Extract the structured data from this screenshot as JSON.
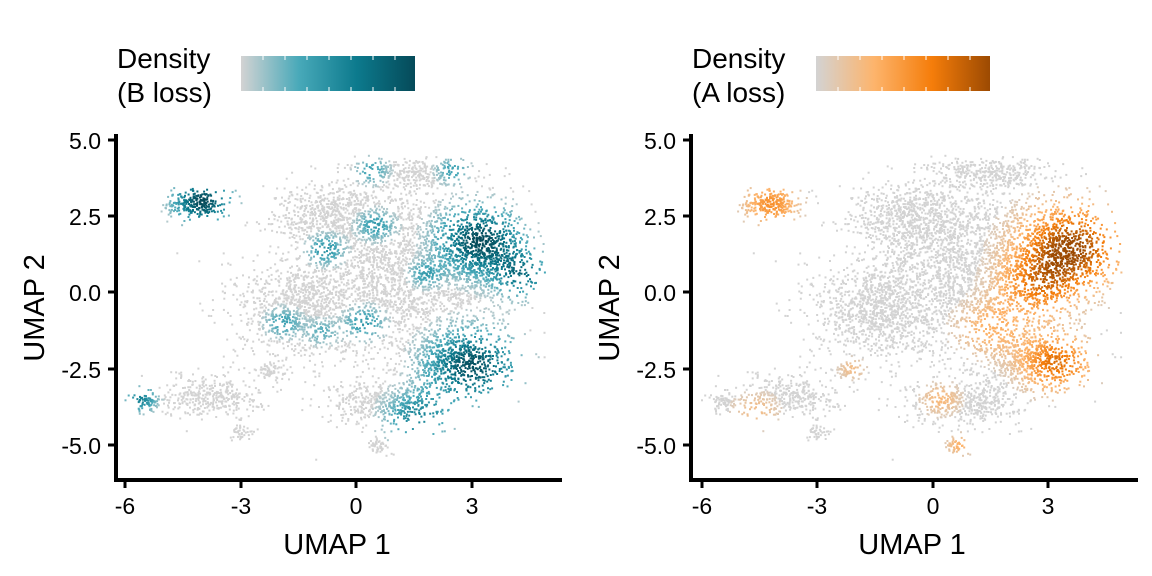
{
  "chart_data": [
    {
      "type": "scatter",
      "xlabel": "UMAP 1",
      "ylabel": "UMAP 2",
      "xticks": [
        -6,
        -3,
        0,
        3
      ],
      "xtick_labels": [
        "-6",
        "-3",
        "0",
        "3"
      ],
      "yticks": [
        5.0,
        2.5,
        0.0,
        -2.5,
        -5.0
      ],
      "ytick_labels": [
        "5.0",
        "2.5",
        "0.0",
        "-2.5",
        "-5.0"
      ],
      "xlim": [
        -6.3,
        5.3
      ],
      "ylim": [
        -6.1,
        5.2
      ],
      "legend": {
        "title_line1": "Density",
        "title_line2": "(B loss)",
        "position": "top",
        "colors": [
          "#d3d3d3",
          "#48a9b9",
          "#0c7a8d",
          "#054a59"
        ]
      },
      "hotspots": [
        {
          "x": -4.0,
          "y": 3.0,
          "intensity": 1.0,
          "radius": 0.7
        },
        {
          "x": 3.2,
          "y": 1.7,
          "intensity": 1.0,
          "radius": 1.0
        },
        {
          "x": 4.3,
          "y": 0.6,
          "intensity": 0.7,
          "radius": 0.7
        },
        {
          "x": 3.0,
          "y": -2.4,
          "intensity": 0.95,
          "radius": 1.1
        },
        {
          "x": 1.6,
          "y": -4.1,
          "intensity": 0.6,
          "radius": 0.8
        },
        {
          "x": -5.6,
          "y": -3.5,
          "intensity": 0.6,
          "radius": 0.4
        },
        {
          "x": -0.8,
          "y": 1.4,
          "intensity": 0.5,
          "radius": 0.45
        },
        {
          "x": 0.5,
          "y": 2.2,
          "intensity": 0.45,
          "radius": 0.45
        },
        {
          "x": 0.4,
          "y": 4.0,
          "intensity": 0.4,
          "radius": 0.4
        },
        {
          "x": 2.5,
          "y": 4.0,
          "intensity": 0.4,
          "radius": 0.4
        },
        {
          "x": -1.9,
          "y": -1.0,
          "intensity": 0.4,
          "radius": 0.45
        },
        {
          "x": 0.2,
          "y": -1.0,
          "intensity": 0.45,
          "radius": 0.5
        },
        {
          "x": 1.8,
          "y": 0.6,
          "intensity": 0.4,
          "radius": 0.4
        },
        {
          "x": -0.9,
          "y": -1.3,
          "intensity": 0.3,
          "radius": 0.4
        }
      ]
    },
    {
      "type": "scatter",
      "xlabel": "UMAP 1",
      "ylabel": "UMAP 2",
      "xticks": [
        -6,
        -3,
        0,
        3
      ],
      "xtick_labels": [
        "-6",
        "-3",
        "0",
        "3"
      ],
      "yticks": [
        5.0,
        2.5,
        0.0,
        -2.5,
        -5.0
      ],
      "ytick_labels": [
        "5.0",
        "2.5",
        "0.0",
        "-2.5",
        "-5.0"
      ],
      "xlim": [
        -6.3,
        5.3
      ],
      "ylim": [
        -6.1,
        5.2
      ],
      "legend": {
        "title_line1": "Density",
        "title_line2": "(A loss)",
        "position": "top",
        "colors": [
          "#d3d3d3",
          "#fdb46c",
          "#f57d0a",
          "#9c4a02"
        ]
      },
      "hotspots": [
        {
          "x": -4.2,
          "y": 2.9,
          "intensity": 0.55,
          "radius": 0.7
        },
        {
          "x": 3.6,
          "y": 1.5,
          "intensity": 1.0,
          "radius": 1.3
        },
        {
          "x": 2.7,
          "y": 0.2,
          "intensity": 0.55,
          "radius": 1.0
        },
        {
          "x": 3.2,
          "y": -2.3,
          "intensity": 0.75,
          "radius": 0.9
        },
        {
          "x": 1.5,
          "y": -1.2,
          "intensity": 0.35,
          "radius": 0.9
        },
        {
          "x": 0.7,
          "y": -5.0,
          "intensity": 0.35,
          "radius": 0.35
        },
        {
          "x": 0.2,
          "y": -3.5,
          "intensity": 0.3,
          "radius": 0.5
        },
        {
          "x": -4.6,
          "y": -3.9,
          "intensity": 0.25,
          "radius": 0.6
        },
        {
          "x": -2.1,
          "y": -2.5,
          "intensity": 0.25,
          "radius": 0.35
        }
      ]
    }
  ]
}
